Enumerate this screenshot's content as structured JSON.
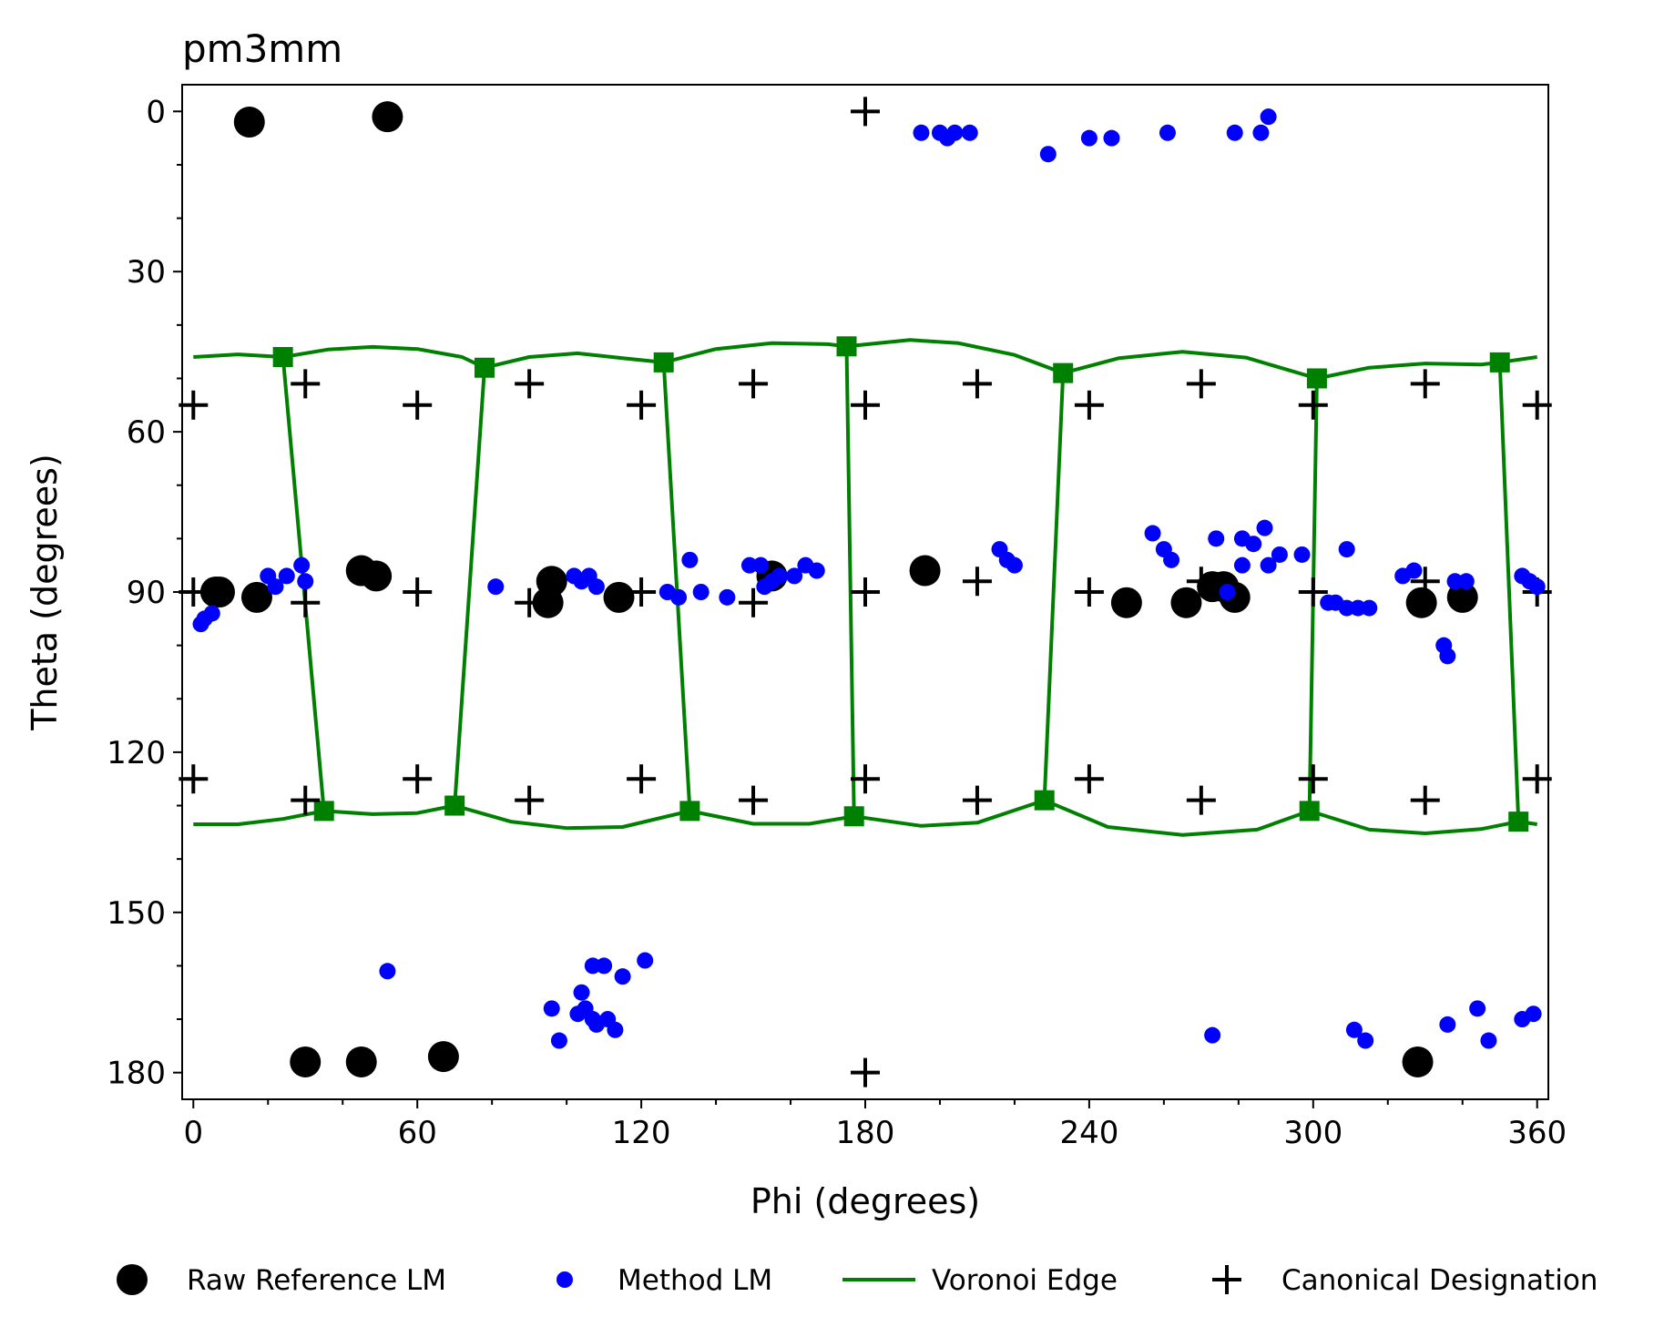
{
  "chart_data": {
    "type": "scatter",
    "title": "pm3mm",
    "xlabel": "Phi (degrees)",
    "ylabel": "Theta (degrees)",
    "xlim": [
      -3,
      363
    ],
    "ylim": [
      185,
      -5
    ],
    "y_inverted": true,
    "xticks": [
      0,
      60,
      120,
      180,
      240,
      300,
      360
    ],
    "yticks": [
      0,
      30,
      60,
      90,
      120,
      150,
      180
    ],
    "grid": false,
    "legend_position": "bottom",
    "colors": {
      "raw_reference": "#000000",
      "method": "#0000ff",
      "voronoi": "#008000",
      "canonical": "#000000"
    },
    "series": [
      {
        "name": "Raw Reference LM",
        "marker": "large-circle",
        "points": [
          [
            15,
            2
          ],
          [
            52,
            1
          ],
          [
            6,
            90
          ],
          [
            7,
            90
          ],
          [
            17,
            91
          ],
          [
            45,
            86
          ],
          [
            49,
            87
          ],
          [
            96,
            88
          ],
          [
            95,
            92
          ],
          [
            114,
            91
          ],
          [
            155,
            87
          ],
          [
            196,
            86
          ],
          [
            250,
            92
          ],
          [
            266,
            92
          ],
          [
            273,
            89
          ],
          [
            276,
            89
          ],
          [
            279,
            91
          ],
          [
            329,
            92
          ],
          [
            340,
            91
          ],
          [
            30,
            178
          ],
          [
            45,
            178
          ],
          [
            67,
            177
          ],
          [
            328,
            178
          ]
        ]
      },
      {
        "name": "Method LM",
        "marker": "small-circle",
        "points": [
          [
            195,
            4
          ],
          [
            200,
            4
          ],
          [
            202,
            5
          ],
          [
            204,
            4
          ],
          [
            208,
            4
          ],
          [
            229,
            8
          ],
          [
            240,
            5
          ],
          [
            246,
            5
          ],
          [
            261,
            4
          ],
          [
            279,
            4
          ],
          [
            286,
            4
          ],
          [
            288,
            1
          ],
          [
            2,
            96
          ],
          [
            3,
            95
          ],
          [
            5,
            94
          ],
          [
            20,
            87
          ],
          [
            22,
            89
          ],
          [
            25,
            87
          ],
          [
            29,
            85
          ],
          [
            30,
            88
          ],
          [
            81,
            89
          ],
          [
            102,
            87
          ],
          [
            104,
            88
          ],
          [
            106,
            87
          ],
          [
            108,
            89
          ],
          [
            127,
            90
          ],
          [
            130,
            91
          ],
          [
            133,
            84
          ],
          [
            136,
            90
          ],
          [
            143,
            91
          ],
          [
            149,
            85
          ],
          [
            152,
            85
          ],
          [
            153,
            89
          ],
          [
            155,
            88
          ],
          [
            157,
            87
          ],
          [
            161,
            87
          ],
          [
            164,
            85
          ],
          [
            167,
            86
          ],
          [
            216,
            82
          ],
          [
            218,
            84
          ],
          [
            220,
            85
          ],
          [
            257,
            79
          ],
          [
            260,
            82
          ],
          [
            262,
            84
          ],
          [
            274,
            80
          ],
          [
            277,
            90
          ],
          [
            281,
            80
          ],
          [
            281,
            85
          ],
          [
            284,
            81
          ],
          [
            287,
            78
          ],
          [
            288,
            85
          ],
          [
            291,
            83
          ],
          [
            297,
            83
          ],
          [
            304,
            92
          ],
          [
            306,
            92
          ],
          [
            309,
            93
          ],
          [
            312,
            93
          ],
          [
            315,
            93
          ],
          [
            309,
            82
          ],
          [
            324,
            87
          ],
          [
            327,
            86
          ],
          [
            335,
            100
          ],
          [
            336,
            102
          ],
          [
            338,
            88
          ],
          [
            341,
            88
          ],
          [
            356,
            87
          ],
          [
            358,
            88
          ],
          [
            360,
            89
          ],
          [
            52,
            161
          ],
          [
            96,
            168
          ],
          [
            98,
            174
          ],
          [
            103,
            169
          ],
          [
            104,
            165
          ],
          [
            105,
            168
          ],
          [
            107,
            170
          ],
          [
            107,
            160
          ],
          [
            108,
            171
          ],
          [
            110,
            160
          ],
          [
            111,
            170
          ],
          [
            113,
            172
          ],
          [
            115,
            162
          ],
          [
            121,
            159
          ],
          [
            273,
            173
          ],
          [
            311,
            172
          ],
          [
            314,
            174
          ],
          [
            336,
            171
          ],
          [
            344,
            168
          ],
          [
            347,
            174
          ],
          [
            356,
            170
          ],
          [
            359,
            169
          ]
        ]
      },
      {
        "name": "Voronoi Edge",
        "marker": "square-line",
        "vertices_top": [
          [
            24,
            46
          ],
          [
            78,
            48
          ],
          [
            126,
            47
          ],
          [
            175,
            44
          ],
          [
            233,
            49
          ],
          [
            301,
            50
          ],
          [
            350,
            47
          ]
        ],
        "vertices_bottom": [
          [
            35,
            131
          ],
          [
            70,
            130
          ],
          [
            133,
            131
          ],
          [
            177,
            132
          ],
          [
            228,
            129
          ],
          [
            299,
            131
          ],
          [
            355,
            133
          ]
        ],
        "top_boundary": [
          [
            0,
            46
          ],
          [
            12,
            45.5
          ],
          [
            24,
            46
          ],
          [
            36,
            44.6
          ],
          [
            48,
            44.1
          ],
          [
            60,
            44.5
          ],
          [
            72,
            46
          ],
          [
            78,
            48
          ],
          [
            90,
            46
          ],
          [
            103,
            45.3
          ],
          [
            115,
            46.2
          ],
          [
            126,
            47
          ],
          [
            140,
            44.5
          ],
          [
            155,
            43.4
          ],
          [
            170,
            43.6
          ],
          [
            175,
            44
          ],
          [
            192,
            42.8
          ],
          [
            205,
            43.4
          ],
          [
            220,
            45.6
          ],
          [
            233,
            49
          ],
          [
            248,
            46.2
          ],
          [
            265,
            45
          ],
          [
            282,
            46.1
          ],
          [
            301,
            50
          ],
          [
            315,
            48
          ],
          [
            330,
            47.2
          ],
          [
            345,
            47.4
          ],
          [
            350,
            47
          ],
          [
            360,
            46
          ]
        ],
        "bottom_boundary": [
          [
            0,
            133.5
          ],
          [
            12,
            133.5
          ],
          [
            24,
            132.5
          ],
          [
            35,
            131
          ],
          [
            48,
            131.6
          ],
          [
            60,
            131.4
          ],
          [
            70,
            130
          ],
          [
            85,
            133
          ],
          [
            100,
            134.2
          ],
          [
            115,
            134
          ],
          [
            133,
            131
          ],
          [
            150,
            133.4
          ],
          [
            165,
            133.4
          ],
          [
            177,
            132
          ],
          [
            195,
            133.8
          ],
          [
            210,
            133.2
          ],
          [
            228,
            129
          ],
          [
            245,
            134
          ],
          [
            265,
            135.5
          ],
          [
            285,
            134.5
          ],
          [
            299,
            131
          ],
          [
            315,
            134.5
          ],
          [
            330,
            135.2
          ],
          [
            345,
            134.4
          ],
          [
            355,
            133
          ],
          [
            360,
            133.5
          ]
        ],
        "edges": [
          [
            [
              24,
              46
            ],
            [
              35,
              131
            ]
          ],
          [
            [
              78,
              48
            ],
            [
              70,
              130
            ]
          ],
          [
            [
              126,
              47
            ],
            [
              133,
              131
            ]
          ],
          [
            [
              175,
              44
            ],
            [
              177,
              132
            ]
          ],
          [
            [
              233,
              49
            ],
            [
              228,
              129
            ]
          ],
          [
            [
              301,
              50
            ],
            [
              299,
              131
            ]
          ],
          [
            [
              350,
              47
            ],
            [
              355,
              133
            ]
          ]
        ]
      },
      {
        "name": "Canonical Designation",
        "marker": "plus",
        "points": [
          [
            0,
            55
          ],
          [
            30,
            51
          ],
          [
            60,
            55
          ],
          [
            90,
            51
          ],
          [
            120,
            55
          ],
          [
            150,
            51
          ],
          [
            180,
            55
          ],
          [
            210,
            51
          ],
          [
            240,
            55
          ],
          [
            270,
            51
          ],
          [
            300,
            55
          ],
          [
            330,
            51
          ],
          [
            360,
            55
          ],
          [
            0,
            90
          ],
          [
            30,
            92
          ],
          [
            60,
            90
          ],
          [
            90,
            92
          ],
          [
            120,
            90
          ],
          [
            150,
            92
          ],
          [
            180,
            90
          ],
          [
            210,
            88
          ],
          [
            240,
            90
          ],
          [
            270,
            88
          ],
          [
            300,
            90
          ],
          [
            330,
            88
          ],
          [
            360,
            90
          ],
          [
            0,
            125
          ],
          [
            30,
            129
          ],
          [
            60,
            125
          ],
          [
            90,
            129
          ],
          [
            120,
            125
          ],
          [
            150,
            129
          ],
          [
            180,
            125
          ],
          [
            210,
            129
          ],
          [
            240,
            125
          ],
          [
            270,
            129
          ],
          [
            300,
            125
          ],
          [
            330,
            129
          ],
          [
            360,
            125
          ],
          [
            180,
            0
          ],
          [
            180,
            180
          ]
        ]
      }
    ]
  }
}
